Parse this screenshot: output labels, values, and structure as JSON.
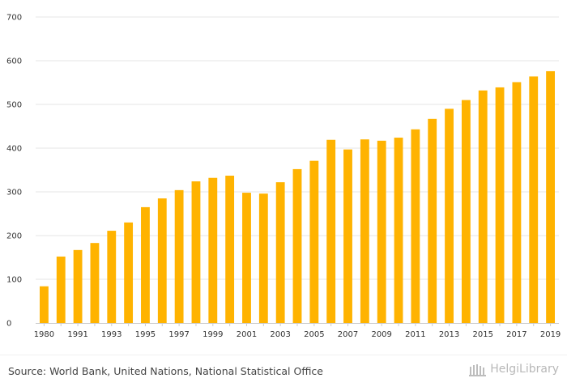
{
  "chart_data": {
    "type": "bar",
    "title": "",
    "xlabel": "",
    "ylabel": "",
    "ylim": [
      0,
      700
    ],
    "yticks": [
      "0",
      "100",
      "200",
      "300",
      "400",
      "500",
      "600",
      "700"
    ],
    "categories": [
      "1980",
      "1990",
      "1991",
      "1992",
      "1993",
      "1994",
      "1995",
      "1996",
      "1997",
      "1998",
      "1999",
      "2000",
      "2001",
      "2002",
      "2003",
      "2004",
      "2005",
      "2006",
      "2007",
      "2008",
      "2009",
      "2010",
      "2011",
      "2012",
      "2013",
      "2014",
      "2015",
      "2016",
      "2017",
      "2018",
      "2019"
    ],
    "xtick_labels": [
      "1980",
      "",
      "1991",
      "",
      "1993",
      "",
      "1995",
      "",
      "1997",
      "",
      "1999",
      "",
      "2001",
      "",
      "2003",
      "",
      "2005",
      "",
      "2007",
      "",
      "2009",
      "",
      "2011",
      "",
      "2013",
      "",
      "2015",
      "",
      "2017",
      "",
      "2019"
    ],
    "values": [
      84,
      152,
      167,
      183,
      211,
      230,
      265,
      285,
      304,
      324,
      332,
      337,
      298,
      296,
      322,
      352,
      371,
      419,
      397,
      420,
      417,
      424,
      443,
      467,
      490,
      510,
      532,
      539,
      551,
      564,
      576
    ],
    "bar_color": "#ffb300",
    "grid": true
  },
  "footer": {
    "source": "Source: World Bank, United Nations, National Statistical Office",
    "brand_name": "HelgiLibrary",
    "brand_icon": "library-icon"
  }
}
